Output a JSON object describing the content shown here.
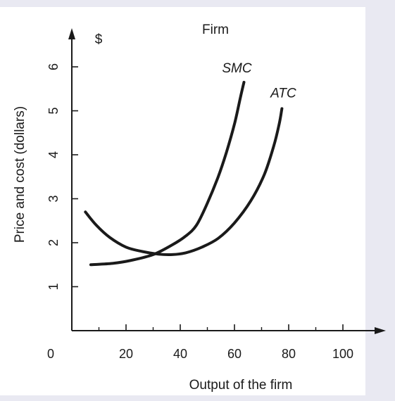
{
  "chart_data": {
    "type": "line",
    "title": "Firm",
    "xlabel": "Output of the firm",
    "ylabel": "Price and cost (dollars)",
    "y_unit": "$",
    "origin_label": "0",
    "xlim": [
      0,
      120
    ],
    "ylim": [
      0,
      6.8
    ],
    "x_ticks": [
      20,
      40,
      60,
      80,
      100
    ],
    "x_tick_labels": [
      "20",
      "40",
      "60",
      "80",
      "100"
    ],
    "x_minor_ticks": [
      10,
      30,
      50,
      70,
      90
    ],
    "y_ticks": [
      1,
      2,
      3,
      4,
      5,
      6
    ],
    "y_tick_labels": [
      "1",
      "2",
      "3",
      "4",
      "5",
      "6"
    ],
    "grid": false,
    "legend": "none",
    "series": [
      {
        "name": "SMC",
        "points": [
          [
            7,
            1.5
          ],
          [
            15,
            1.53
          ],
          [
            22,
            1.6
          ],
          [
            30,
            1.73
          ],
          [
            37,
            1.95
          ],
          [
            42,
            2.15
          ],
          [
            46,
            2.4
          ],
          [
            50,
            2.9
          ],
          [
            54,
            3.5
          ],
          [
            57,
            4.05
          ],
          [
            60,
            4.7
          ],
          [
            62,
            5.25
          ],
          [
            63.5,
            5.65
          ]
        ]
      },
      {
        "name": "ATC",
        "points": [
          [
            5,
            2.7
          ],
          [
            9,
            2.4
          ],
          [
            14,
            2.12
          ],
          [
            20,
            1.9
          ],
          [
            26,
            1.8
          ],
          [
            32,
            1.74
          ],
          [
            37,
            1.73
          ],
          [
            42,
            1.77
          ],
          [
            48,
            1.9
          ],
          [
            54,
            2.1
          ],
          [
            60,
            2.45
          ],
          [
            66,
            2.95
          ],
          [
            71,
            3.55
          ],
          [
            74.5,
            4.2
          ],
          [
            76.5,
            4.7
          ],
          [
            77.5,
            5.05
          ]
        ]
      }
    ]
  }
}
